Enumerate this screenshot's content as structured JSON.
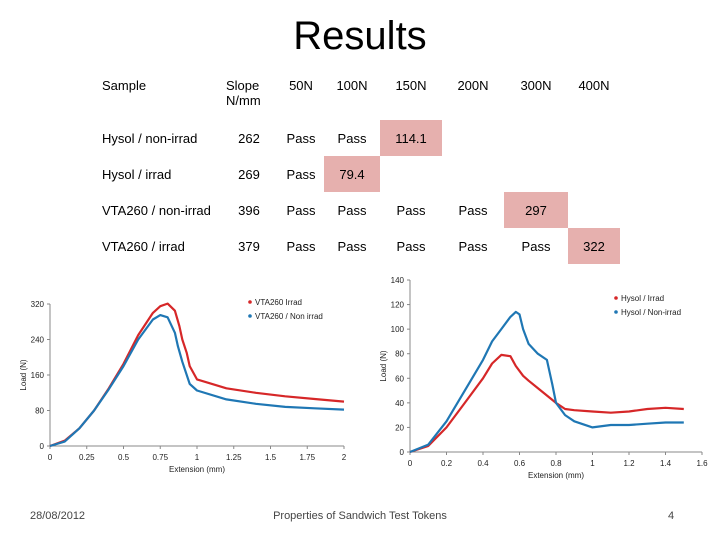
{
  "slide": {
    "title": "Results",
    "date": "28/08/2012",
    "footer": "Properties of Sandwich Test Tokens",
    "page_number": "4"
  },
  "table": {
    "header": [
      "Sample",
      "Slope N/mm",
      "50N",
      "100N",
      "150N",
      "200N",
      "300N",
      "400N"
    ],
    "rows": [
      [
        "Hysol / non-irrad",
        "262",
        "Pass",
        "Pass",
        "114.1",
        "",
        "",
        ""
      ],
      [
        "Hysol / irrad",
        "269",
        "Pass",
        "79.4",
        "",
        "",
        "",
        ""
      ],
      [
        "VTA260 / non-irrad",
        "396",
        "Pass",
        "Pass",
        "Pass",
        "Pass",
        "297",
        ""
      ],
      [
        "VTA260 / irrad",
        "379",
        "Pass",
        "Pass",
        "Pass",
        "Pass",
        "Pass",
        "322"
      ]
    ],
    "highlight_color": "#e6b0ae"
  },
  "chart_data": [
    {
      "type": "scatter",
      "title": "",
      "xlabel": "Extension (mm)",
      "ylabel": "Load (N)",
      "xlim": [
        0,
        2
      ],
      "ylim": [
        0,
        320
      ],
      "xticks": [
        "0",
        "0.25",
        "0.5",
        "0.75",
        "1",
        "1.25",
        "1.5",
        "1.75",
        "2"
      ],
      "yticks": [
        "0",
        "80",
        "160",
        "240",
        "320"
      ],
      "legend_position": "top-right",
      "series": [
        {
          "name": "VTA260 Irrad",
          "color": "#d62728",
          "x": [
            0,
            0.1,
            0.2,
            0.3,
            0.4,
            0.5,
            0.6,
            0.7,
            0.75,
            0.8,
            0.85,
            0.88,
            0.9,
            0.93,
            0.95,
            1.0,
            1.2,
            1.4,
            1.6,
            1.8,
            2.0
          ],
          "y": [
            0,
            12,
            40,
            80,
            130,
            185,
            250,
            300,
            315,
            321,
            305,
            270,
            240,
            210,
            180,
            150,
            130,
            120,
            112,
            106,
            100
          ]
        },
        {
          "name": "VTA260 / Non irrad",
          "color": "#1f77b4",
          "x": [
            0,
            0.1,
            0.2,
            0.3,
            0.4,
            0.5,
            0.6,
            0.7,
            0.75,
            0.8,
            0.85,
            0.87,
            0.9,
            0.95,
            1.0,
            1.2,
            1.4,
            1.6,
            1.8,
            2.0
          ],
          "y": [
            0,
            10,
            40,
            80,
            128,
            180,
            240,
            285,
            295,
            290,
            255,
            225,
            190,
            140,
            125,
            105,
            95,
            88,
            85,
            82
          ]
        }
      ]
    },
    {
      "type": "scatter",
      "title": "",
      "xlabel": "Extension (mm)",
      "ylabel": "Load (N)",
      "xlim": [
        0,
        1.6
      ],
      "ylim": [
        0,
        140
      ],
      "xticks": [
        "0",
        "0.2",
        "0.4",
        "0.6",
        "0.8",
        "1",
        "1.2",
        "1.4",
        "1.6"
      ],
      "yticks": [
        "0",
        "20",
        "40",
        "60",
        "80",
        "100",
        "120",
        "140"
      ],
      "legend_position": "top-right",
      "series": [
        {
          "name": "Hysol / Irrad",
          "color": "#d62728",
          "x": [
            0,
            0.1,
            0.2,
            0.3,
            0.4,
            0.45,
            0.5,
            0.55,
            0.58,
            0.62,
            0.65,
            0.7,
            0.75,
            0.8,
            0.85,
            0.9,
            1.0,
            1.1,
            1.2,
            1.3,
            1.4,
            1.5
          ],
          "y": [
            0,
            5,
            20,
            40,
            60,
            72,
            79,
            78,
            70,
            62,
            58,
            52,
            46,
            40,
            35,
            34,
            33,
            32,
            33,
            35,
            36,
            35
          ]
        },
        {
          "name": "Hysol / Non-irrad",
          "color": "#1f77b4",
          "x": [
            0,
            0.1,
            0.2,
            0.3,
            0.4,
            0.45,
            0.5,
            0.55,
            0.58,
            0.6,
            0.62,
            0.65,
            0.7,
            0.75,
            0.78,
            0.8,
            0.85,
            0.9,
            1.0,
            1.1,
            1.2,
            1.3,
            1.4,
            1.5
          ],
          "y": [
            0,
            6,
            25,
            50,
            75,
            90,
            100,
            110,
            114,
            112,
            100,
            88,
            80,
            75,
            55,
            40,
            30,
            25,
            20,
            22,
            22,
            23,
            24,
            24
          ]
        }
      ]
    }
  ]
}
